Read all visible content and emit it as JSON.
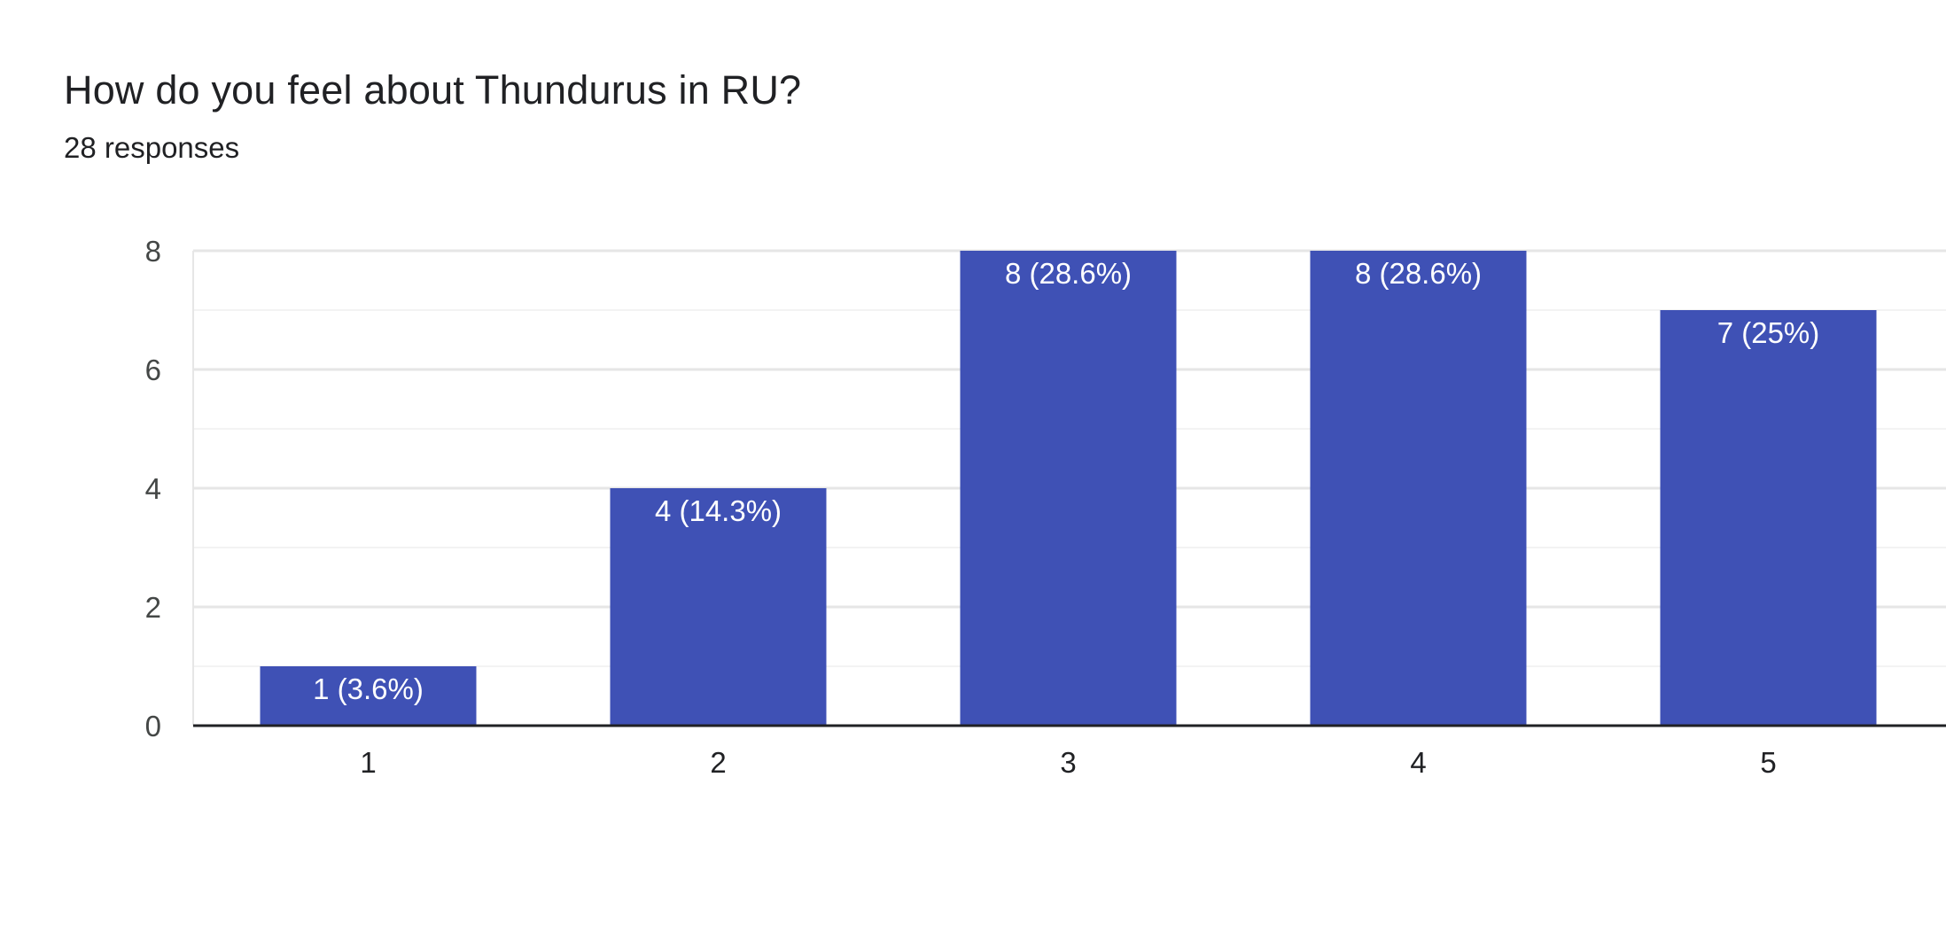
{
  "question": {
    "title": "How do you feel about Thundurus in RU?",
    "responses": "28 responses"
  },
  "colors": {
    "bar": "#3f51b5",
    "grid_major": "#e6e6e6",
    "grid_minor": "#f3f3f3",
    "axis": "#202124"
  },
  "chart_data": {
    "type": "bar",
    "categories": [
      "1",
      "2",
      "3",
      "4",
      "5"
    ],
    "values": [
      1,
      4,
      8,
      8,
      7
    ],
    "data_labels": [
      "1 (3.6%)",
      "4 (14.3%)",
      "8 (28.6%)",
      "8 (28.6%)",
      "7 (25%)"
    ],
    "y_ticks": [
      "0",
      "2",
      "4",
      "6",
      "8"
    ],
    "ylim": [
      0,
      8
    ],
    "grid": true,
    "legend": "none"
  }
}
